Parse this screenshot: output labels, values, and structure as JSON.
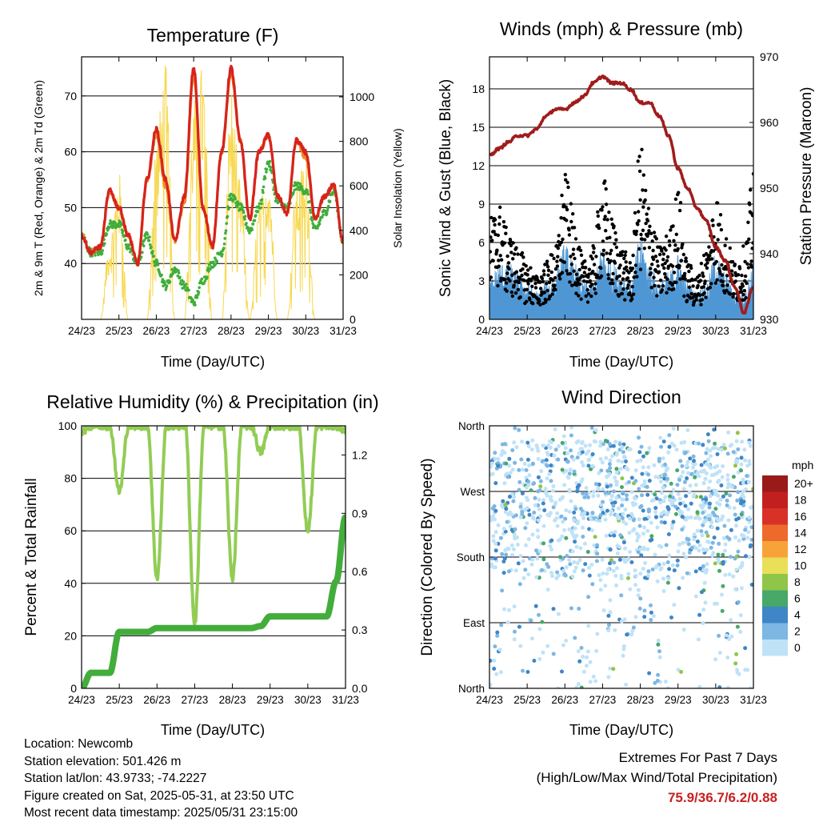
{
  "colors": {
    "temp_red": "#d6231e",
    "temp_orange": "#f08a24",
    "dewpoint_green": "#3fae3a",
    "insolation_yellow": "#f7d850",
    "wind_blue": "#4f97d4",
    "gust_black": "#000000",
    "pressure_maroon": "#a01c1c",
    "rh_green": "#92cc55",
    "precip_green": "#43ad3c",
    "extremes_red": "#c8201f"
  },
  "x_ticks": [
    "24/23",
    "25/23",
    "26/23",
    "27/23",
    "28/23",
    "29/23",
    "30/23",
    "31/23"
  ],
  "chart_data": [
    {
      "type": "line",
      "title": "Temperature (F)",
      "xlabel": "Time (Day/UTC)",
      "ylabel": "2m & 9m T (Red, Orange) & 2m Td (Green)",
      "y2label": "Solar Insolation (Yellow)",
      "xlim": [
        0,
        7
      ],
      "ylim": [
        30,
        77
      ],
      "y2lim": [
        0,
        1180
      ],
      "yticks": [
        40,
        50,
        60,
        70
      ],
      "y2ticks": [
        0,
        200,
        400,
        600,
        800,
        1000
      ],
      "grid": true,
      "x": [
        0,
        0.25,
        0.5,
        0.75,
        1,
        1.25,
        1.5,
        1.75,
        2,
        2.25,
        2.5,
        2.75,
        3,
        3.25,
        3.5,
        3.75,
        4,
        4.25,
        4.5,
        4.75,
        5,
        5.25,
        5.5,
        5.75,
        6,
        6.25,
        6.5,
        6.75,
        7
      ],
      "series": [
        {
          "name": "2m T",
          "values": [
            45,
            42,
            43,
            53,
            50,
            45,
            40,
            55,
            64,
            55,
            44,
            52,
            75,
            50,
            43,
            60,
            75,
            62,
            48,
            60,
            63,
            52,
            49,
            62,
            60,
            48,
            52,
            54,
            44
          ]
        },
        {
          "name": "9m T",
          "values": [
            45,
            42,
            43,
            53,
            50,
            45,
            40,
            55,
            63,
            54,
            44,
            51,
            74,
            50,
            43,
            60,
            74,
            62,
            48,
            60,
            63,
            52,
            49,
            62,
            59,
            48,
            52,
            54,
            44
          ]
        },
        {
          "name": "2m Td",
          "values": [
            45,
            42,
            42,
            47,
            47,
            43,
            40,
            45,
            40,
            36,
            39,
            36,
            33,
            37,
            40,
            42,
            52,
            50,
            46,
            50,
            58,
            51,
            50,
            54,
            53,
            46,
            49,
            53,
            44
          ]
        },
        {
          "name": "Solar Insolation",
          "values": [
            0,
            0,
            0,
            350,
            640,
            0,
            0,
            0,
            800,
            1100,
            0,
            0,
            950,
            1100,
            0,
            0,
            1000,
            600,
            0,
            500,
            700,
            0,
            0,
            600,
            700,
            0,
            0,
            0,
            0
          ]
        }
      ]
    },
    {
      "type": "line",
      "title": "Winds (mph) & Pressure (mb)",
      "xlabel": "Time (Day/UTC)",
      "ylabel": "Sonic Wind & Gust (Blue, Black)",
      "y2label": "Station Pressure (Maroon)",
      "xlim": [
        0,
        7
      ],
      "ylim": [
        0,
        20.5
      ],
      "y2lim": [
        930,
        970
      ],
      "yticks": [
        0,
        3,
        6,
        9,
        12,
        15,
        18
      ],
      "y2ticks": [
        930,
        940,
        950,
        960,
        970
      ],
      "grid": true,
      "x": [
        0,
        0.25,
        0.5,
        0.75,
        1,
        1.25,
        1.5,
        1.75,
        2,
        2.25,
        2.5,
        2.75,
        3,
        3.25,
        3.5,
        3.75,
        4,
        4.25,
        4.5,
        4.75,
        5,
        5.25,
        5.5,
        5.75,
        6,
        6.25,
        6.5,
        6.75,
        7
      ],
      "series": [
        {
          "name": "Sonic Wind",
          "values": [
            2,
            3,
            3,
            2.5,
            2,
            1.5,
            2,
            2.5,
            4,
            3,
            2,
            2,
            4,
            3,
            2.5,
            2,
            4.5,
            3,
            2,
            2.5,
            3.5,
            2,
            1.5,
            2,
            3.5,
            2.5,
            1.5,
            1.5,
            3
          ]
        },
        {
          "name": "Gust",
          "values": [
            7,
            8,
            6,
            5,
            4,
            3,
            4,
            5,
            10,
            7,
            4,
            5,
            10,
            7,
            5,
            4,
            12,
            8,
            5,
            6,
            9,
            4,
            3,
            5,
            9,
            6,
            4,
            5,
            10
          ]
        },
        {
          "name": "Station Pressure",
          "values": [
            955,
            956,
            957,
            958,
            958,
            959,
            961,
            962,
            962,
            963,
            964,
            966,
            967,
            966,
            966,
            965,
            963,
            963,
            961,
            958,
            953,
            950,
            947,
            945,
            941,
            939,
            935,
            931,
            935
          ]
        }
      ]
    },
    {
      "type": "line",
      "title": "Relative Humidity (%) & Precipitation (in)",
      "xlabel": "Time (Day/UTC)",
      "ylabel": "Percent & Total Rainfall",
      "xlim": [
        0,
        7
      ],
      "ylim": [
        0,
        100
      ],
      "y2lim": [
        0,
        1.35
      ],
      "yticks": [
        0,
        20,
        40,
        60,
        80,
        100
      ],
      "y2ticks": [
        0.0,
        0.3,
        0.6,
        0.9,
        1.2
      ],
      "grid": true,
      "x": [
        0,
        0.25,
        0.5,
        0.75,
        1,
        1.25,
        1.5,
        1.75,
        2,
        2.25,
        2.5,
        2.75,
        3,
        3.25,
        3.5,
        3.75,
        4,
        4.25,
        4.5,
        4.75,
        5,
        5.25,
        5.5,
        5.75,
        6,
        6.25,
        6.5,
        6.75,
        7
      ],
      "series": [
        {
          "name": "Relative Humidity",
          "values": [
            98,
            100,
            100,
            100,
            75,
            100,
            100,
            100,
            42,
            100,
            100,
            100,
            25,
            100,
            100,
            100,
            42,
            100,
            100,
            90,
            100,
            100,
            100,
            100,
            60,
            100,
            100,
            100,
            98
          ]
        },
        {
          "name": "Total Precipitation",
          "values": [
            0,
            0.08,
            0.08,
            0.08,
            0.29,
            0.29,
            0.29,
            0.29,
            0.31,
            0.31,
            0.31,
            0.31,
            0.31,
            0.31,
            0.31,
            0.31,
            0.31,
            0.31,
            0.31,
            0.32,
            0.37,
            0.37,
            0.37,
            0.37,
            0.37,
            0.37,
            0.37,
            0.55,
            0.88
          ]
        }
      ]
    },
    {
      "type": "scatter",
      "title": "Wind Direction",
      "xlabel": "Time (Day/UTC)",
      "ylabel": "Direction (Colored By Speed)",
      "xlim": [
        0,
        7
      ],
      "ylim": [
        0,
        360
      ],
      "ytick_labels": [
        "North",
        "East",
        "South",
        "West",
        "North"
      ],
      "yticks": [
        0,
        90,
        180,
        270,
        360
      ],
      "grid": true,
      "colorbar": {
        "label": "mph",
        "levels": [
          "20+",
          "18",
          "16",
          "14",
          "12",
          "10",
          "8",
          "6",
          "4",
          "2",
          "0"
        ],
        "colors": [
          "#9a1a1a",
          "#c2201f",
          "#d83228",
          "#ee6a2c",
          "#f7a33a",
          "#eadf58",
          "#8fc548",
          "#47a86a",
          "#3f86c6",
          "#7db7e3",
          "#bfe2f7"
        ]
      }
    }
  ],
  "footer": {
    "location": "Location: Newcomb",
    "elevation": "Station elevation: 501.426 m",
    "latlon": "Station lat/lon: 43.9733; -74.2227",
    "created": "Figure created on Sat, 2025-05-31, at 23:50 UTC",
    "recent": "Most recent data timestamp: 2025/05/31 23:15:00"
  },
  "extremes": {
    "title": "Extremes For Past 7 Days",
    "subtitle": "(High/Low/Max Wind/Total Precipitation)",
    "values": "75.9/36.7/6.2/0.88"
  }
}
